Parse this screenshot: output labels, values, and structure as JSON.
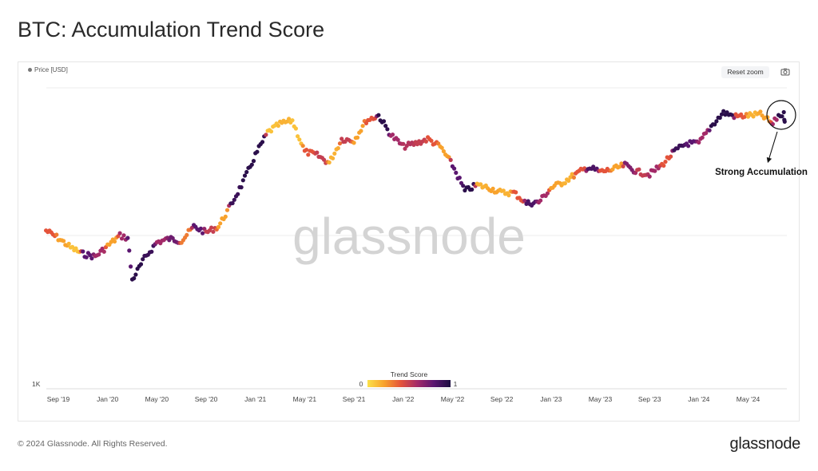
{
  "title": "BTC: Accumulation Trend Score",
  "legend_label": "Price [USD]",
  "reset_zoom_label": "Reset zoom",
  "camera_icon": "camera-icon",
  "watermark": "glassnode",
  "footer": "© 2024 Glassnode. All Rights Reserved.",
  "logo": "glassnode",
  "chart_data": {
    "type": "scatter",
    "title": "BTC: Accumulation Trend Score",
    "y_scale": "log",
    "y_tick_labels": [
      "1K"
    ],
    "ylim": [
      1000,
      120000
    ],
    "x_tick_labels": [
      "Sep '19",
      "Jan '20",
      "May '20",
      "Sep '20",
      "Jan '21",
      "May '21",
      "Sep '21",
      "Jan '22",
      "May '22",
      "Sep '22",
      "Jan '23",
      "May '23",
      "Sep '23",
      "Jan '24",
      "May '24"
    ],
    "grid": "horizontal",
    "colorbar": {
      "title": "Trend Score",
      "min_label": "0",
      "max_label": "1",
      "colors": [
        "#fbe14a",
        "#f8a22c",
        "#e4533a",
        "#a32a68",
        "#5a1670",
        "#1b0c3f"
      ]
    },
    "annotation": "Strong Accumulation",
    "series": [
      [
        "2019-08",
        10800,
        0.4
      ],
      [
        "2019-09",
        9600,
        0.2
      ],
      [
        "2019-10",
        8300,
        0.1
      ],
      [
        "2019-11",
        7500,
        0.8
      ],
      [
        "2019-12",
        7200,
        0.6
      ],
      [
        "2020-01",
        8500,
        0.2
      ],
      [
        "2020-02",
        10000,
        0.6
      ],
      [
        "2020-02-20",
        9600,
        0.8
      ],
      [
        "2020-03",
        5000,
        0.95
      ],
      [
        "2020-04",
        7000,
        0.9
      ],
      [
        "2020-05",
        9000,
        0.6
      ],
      [
        "2020-06",
        9500,
        0.75
      ],
      [
        "2020-07",
        9200,
        0.3
      ],
      [
        "2020-08",
        11500,
        0.8
      ],
      [
        "2020-09",
        10500,
        0.5
      ],
      [
        "2020-10",
        11500,
        0.2
      ],
      [
        "2020-11",
        16000,
        0.9
      ],
      [
        "2020-12",
        23000,
        0.95
      ],
      [
        "2021-01",
        35000,
        0.95
      ],
      [
        "2021-02",
        50000,
        0.1
      ],
      [
        "2021-03",
        57000,
        0.15
      ],
      [
        "2021-04",
        60000,
        0.1
      ],
      [
        "2021-05",
        37000,
        0.4
      ],
      [
        "2021-06",
        35000,
        0.5
      ],
      [
        "2021-07",
        31000,
        0.15
      ],
      [
        "2021-08",
        45000,
        0.5
      ],
      [
        "2021-09",
        44000,
        0.2
      ],
      [
        "2021-10",
        60000,
        0.4
      ],
      [
        "2021-11",
        65000,
        0.95
      ],
      [
        "2021-12",
        48000,
        0.6
      ],
      [
        "2022-01",
        40000,
        0.55
      ],
      [
        "2022-02",
        42000,
        0.5
      ],
      [
        "2022-03",
        45000,
        0.4
      ],
      [
        "2022-04",
        40000,
        0.2
      ],
      [
        "2022-05",
        30000,
        0.8
      ],
      [
        "2022-06",
        20000,
        0.95
      ],
      [
        "2022-07",
        22000,
        0.15
      ],
      [
        "2022-08",
        21000,
        0.2
      ],
      [
        "2022-09",
        19500,
        0.15
      ],
      [
        "2022-10",
        19500,
        0.4
      ],
      [
        "2022-11",
        16500,
        0.85
      ],
      [
        "2022-12",
        16800,
        0.6
      ],
      [
        "2023-01",
        21000,
        0.2
      ],
      [
        "2023-02",
        23000,
        0.15
      ],
      [
        "2023-03",
        26000,
        0.4
      ],
      [
        "2023-04",
        29000,
        0.85
      ],
      [
        "2023-05",
        27000,
        0.4
      ],
      [
        "2023-06",
        28000,
        0.2
      ],
      [
        "2023-07",
        30000,
        0.7
      ],
      [
        "2023-08",
        27000,
        0.5
      ],
      [
        "2023-09",
        26000,
        0.6
      ],
      [
        "2023-10",
        30000,
        0.4
      ],
      [
        "2023-11",
        37000,
        0.9
      ],
      [
        "2023-12",
        42000,
        0.8
      ],
      [
        "2024-01",
        42000,
        0.6
      ],
      [
        "2024-02",
        55000,
        0.95
      ],
      [
        "2024-03",
        68000,
        0.95
      ],
      [
        "2024-04",
        64000,
        0.4
      ],
      [
        "2024-05",
        65000,
        0.15
      ],
      [
        "2024-06",
        66000,
        0.2
      ],
      [
        "2024-07",
        57000,
        0.6
      ],
      [
        "2024-07-15",
        65000,
        0.95
      ],
      [
        "2024-07-28",
        66000,
        0.95
      ],
      [
        "2024-08",
        58000,
        0.95
      ]
    ]
  }
}
